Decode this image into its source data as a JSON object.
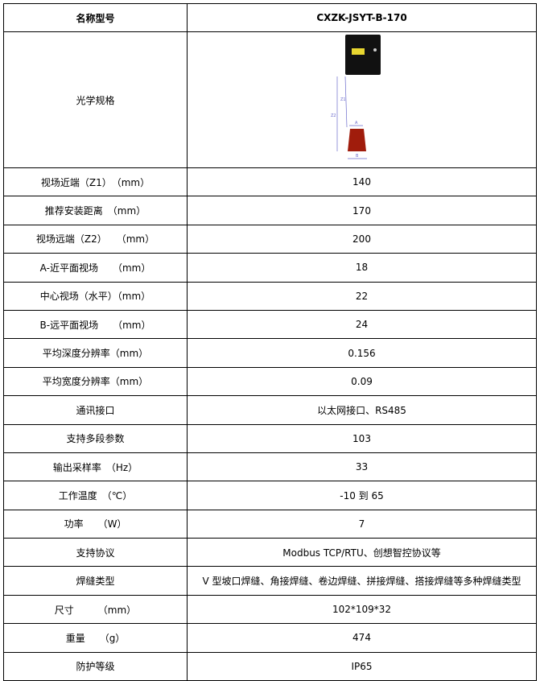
{
  "header": {
    "label": "名称型号",
    "value": "CXZK-JSYT-B-170"
  },
  "optics": {
    "label": "光学规格",
    "dim_labels": [
      "Z1",
      "Z2",
      "A",
      "B"
    ]
  },
  "rows": [
    {
      "label": "视场近端（Z1）　（mm）",
      "value": "140"
    },
    {
      "label": "推荐安装距离　（mm）",
      "value": "170"
    },
    {
      "label": "视场远端（Z2）　　（mm）",
      "value": "200"
    },
    {
      "label": "A-近平面视场　　（mm）",
      "value": "18"
    },
    {
      "label": "中心视场（水平）（mm）",
      "value": "22"
    },
    {
      "label": "B-远平面视场　　（mm）",
      "value": "24"
    },
    {
      "label": "平均深度分辨率（mm）",
      "value": "0.156"
    },
    {
      "label": "平均宽度分辨率（mm）",
      "value": "0.09"
    },
    {
      "label": "通讯接口",
      "value": "以太网接口、RS485"
    },
    {
      "label": "支持多段参数",
      "value": "103"
    },
    {
      "label": "输出采样率　（Hz）",
      "value": "33"
    },
    {
      "label": "工作温度　（℃）",
      "value": "-10 到 65"
    },
    {
      "label": "功率　　（W）",
      "value": "7"
    },
    {
      "label": "支持协议",
      "value": "Modbus TCP/RTU、创想智控协议等"
    },
    {
      "label": "焊缝类型",
      "value": "V 型坡口焊缝、角接焊缝、卷边焊缝、拼接焊缝、搭接焊缝等多种焊缝类型"
    },
    {
      "label": "尺寸　　　（mm）",
      "value": "102*109*32"
    },
    {
      "label": "重量　　（g）",
      "value": "474"
    },
    {
      "label": "防护等级",
      "value": "IP65"
    }
  ],
  "colors": {
    "sensor_body": "#111111",
    "target": "#a01c0c",
    "dimension_lines": "#6a6acc"
  }
}
